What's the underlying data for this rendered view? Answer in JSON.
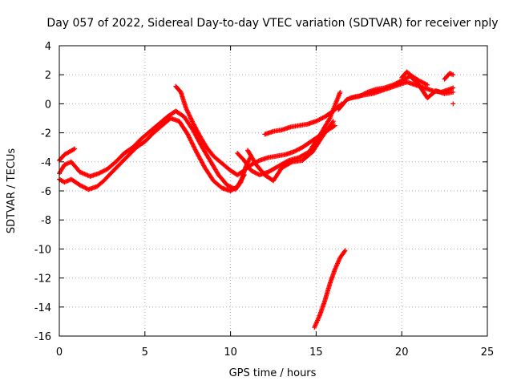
{
  "chart_data": {
    "type": "scatter",
    "title": "Day 057 of 2022, Sidereal Day-to-day VTEC variation (SDTVAR) for receiver nply",
    "xlabel": "GPS time / hours",
    "ylabel": "SDTVAR / TECUs",
    "xlim": [
      0,
      25
    ],
    "ylim": [
      -16,
      4
    ],
    "xticks": [
      0,
      5,
      10,
      15,
      20,
      25
    ],
    "xtick_labels": [
      "0",
      "5",
      "10",
      "15",
      "20",
      "25"
    ],
    "yticks": [
      -16,
      -14,
      -12,
      -10,
      -8,
      -6,
      -4,
      -2,
      0,
      2,
      4
    ],
    "ytick_labels": [
      "-16",
      "-14",
      "-12",
      "-10",
      "-8",
      "-6",
      "-4",
      "-2",
      "0",
      "2",
      "4"
    ],
    "grid": true,
    "marker": "+",
    "color": "#ff0000",
    "series": [
      {
        "name": "track-a",
        "x": [
          0.0,
          0.3,
          0.7,
          1.2,
          1.8,
          2.3,
          2.8,
          3.3,
          3.8,
          4.3,
          4.8,
          5.3,
          5.8,
          6.3,
          6.8,
          7.3,
          7.8,
          8.3,
          8.8,
          9.3,
          9.8,
          10.3,
          10.6,
          10.9,
          11.2
        ],
        "y": [
          -4.8,
          -4.2,
          -4.0,
          -4.7,
          -5.0,
          -4.8,
          -4.5,
          -4.0,
          -3.4,
          -3.0,
          -2.4,
          -1.9,
          -1.4,
          -0.9,
          -0.5,
          -0.9,
          -1.8,
          -2.9,
          -3.9,
          -4.9,
          -5.6,
          -5.9,
          -5.4,
          -4.3,
          -3.6
        ]
      },
      {
        "name": "track-b",
        "x": [
          0.0,
          0.3,
          0.7,
          1.2,
          1.7,
          2.2,
          2.6,
          3.0,
          3.5,
          4.0,
          4.5,
          5.0,
          5.5,
          6.0,
          6.5,
          7.0,
          7.5,
          8.0,
          8.5,
          9.0,
          9.5,
          10.0,
          10.4,
          10.8
        ],
        "y": [
          -5.2,
          -5.4,
          -5.2,
          -5.6,
          -5.9,
          -5.7,
          -5.3,
          -4.8,
          -4.2,
          -3.6,
          -3.0,
          -2.6,
          -2.0,
          -1.5,
          -1.0,
          -1.2,
          -2.1,
          -3.3,
          -4.4,
          -5.3,
          -5.8,
          -6.0,
          -5.7,
          -4.9
        ]
      },
      {
        "name": "track-c",
        "x": [
          0.0,
          0.3,
          0.6,
          0.9
        ],
        "y": [
          -3.9,
          -3.5,
          -3.3,
          -3.1
        ]
      },
      {
        "name": "track-d",
        "x": [
          6.8,
          7.1,
          7.4,
          7.8,
          8.2,
          8.6,
          9.0,
          9.5,
          10.0,
          10.4,
          10.8,
          11.2,
          11.7,
          12.2,
          12.7,
          13.2,
          13.7,
          14.2,
          14.7,
          15.2,
          15.7,
          16.1
        ],
        "y": [
          1.2,
          0.8,
          -0.3,
          -1.3,
          -2.2,
          -3.0,
          -3.6,
          -4.1,
          -4.6,
          -4.9,
          -4.6,
          -4.2,
          -3.9,
          -3.7,
          -3.6,
          -3.5,
          -3.3,
          -3.0,
          -2.6,
          -2.2,
          -1.8,
          -1.5
        ]
      },
      {
        "name": "track-e",
        "x": [
          10.4,
          10.8,
          11.2,
          11.7,
          12.2,
          12.8,
          13.4,
          14.0,
          14.6,
          15.2,
          15.8,
          16.4
        ],
        "y": [
          -3.4,
          -3.9,
          -4.6,
          -4.9,
          -4.7,
          -4.3,
          -3.9,
          -3.7,
          -3.3,
          -2.2,
          -1.0,
          0.8
        ]
      },
      {
        "name": "track-f",
        "x": [
          12.0,
          12.5,
          13.0,
          13.5,
          14.0,
          14.5,
          15.0,
          15.5,
          16.0,
          16.5
        ],
        "y": [
          -2.1,
          -1.9,
          -1.8,
          -1.6,
          -1.5,
          -1.4,
          -1.2,
          -0.9,
          -0.5,
          0.0
        ]
      },
      {
        "name": "track-g",
        "x": [
          11.0,
          11.5,
          12.0,
          12.5,
          13.0,
          13.6,
          14.2,
          14.8,
          15.4,
          16.0
        ],
        "y": [
          -3.2,
          -4.2,
          -4.9,
          -5.3,
          -4.4,
          -4.0,
          -3.9,
          -3.3,
          -2.2,
          -1.2
        ]
      },
      {
        "name": "track-h",
        "x": [
          16.3,
          16.8,
          17.3,
          17.8,
          18.3,
          18.8,
          19.3,
          19.8,
          20.3,
          20.8,
          21.3,
          21.8,
          22.3,
          22.8,
          23.0
        ],
        "y": [
          -0.4,
          0.3,
          0.5,
          0.6,
          0.7,
          0.9,
          1.1,
          1.3,
          1.5,
          1.3,
          1.1,
          0.9,
          0.8,
          1.0,
          1.1
        ]
      },
      {
        "name": "track-i",
        "x": [
          17.0,
          17.5,
          18.0,
          18.5,
          19.0,
          19.5,
          20.0,
          20.5,
          21.0,
          21.5,
          22.0,
          22.5,
          23.0
        ],
        "y": [
          0.4,
          0.5,
          0.8,
          1.0,
          1.1,
          1.3,
          1.6,
          1.9,
          1.3,
          0.4,
          0.9,
          0.7,
          0.8
        ]
      },
      {
        "name": "track-j",
        "x": [
          20.0,
          20.3,
          20.6,
          21.0,
          21.5
        ],
        "y": [
          1.8,
          2.2,
          1.9,
          1.6,
          1.3
        ]
      },
      {
        "name": "track-k",
        "x": [
          22.5,
          22.8,
          23.0
        ],
        "y": [
          1.7,
          2.1,
          2.0
        ]
      },
      {
        "name": "track-l",
        "x": [
          14.9,
          15.2,
          15.5,
          15.8,
          16.1,
          16.4,
          16.7
        ],
        "y": [
          -15.4,
          -14.6,
          -13.6,
          -12.4,
          -11.4,
          -10.6,
          -10.1
        ]
      },
      {
        "name": "isolated-point",
        "x": [
          23.0
        ],
        "y": [
          0.0
        ]
      }
    ]
  }
}
